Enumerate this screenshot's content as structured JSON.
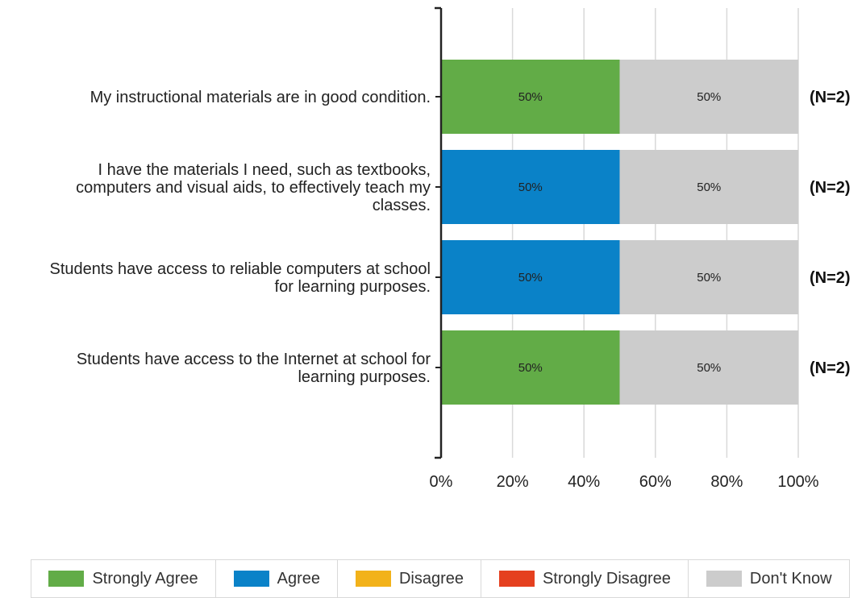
{
  "chart_data": {
    "type": "bar",
    "orientation": "horizontal",
    "stacked": true,
    "categories": [
      "My instructional materials are in good condition.",
      "I have the materials I need, such as textbooks, computers and visual aids, to effectively teach my classes.",
      "Students have access to reliable computers at school for learning purposes.",
      "Students have access to the Internet at school for learning purposes."
    ],
    "category_lines": [
      [
        "My instructional materials are in good condition."
      ],
      [
        "I have the materials I need, such as textbooks,",
        "computers and visual aids, to effectively teach my",
        "classes."
      ],
      [
        "Students have access to reliable computers at school",
        "for learning purposes."
      ],
      [
        "Students have access to the Internet at school for",
        "learning purposes."
      ]
    ],
    "series": [
      {
        "name": "Strongly Agree",
        "color": "#62ac47",
        "values": [
          50,
          0,
          0,
          50
        ]
      },
      {
        "name": "Agree",
        "color": "#0a82c8",
        "values": [
          0,
          50,
          50,
          0
        ]
      },
      {
        "name": "Disagree",
        "color": "#f2b21a",
        "values": [
          0,
          0,
          0,
          0
        ]
      },
      {
        "name": "Strongly Disagree",
        "color": "#e5401f",
        "values": [
          0,
          0,
          0,
          0
        ]
      },
      {
        "name": "Don't Know",
        "color": "#cccccc",
        "values": [
          50,
          50,
          50,
          50
        ]
      }
    ],
    "n_labels": [
      "(N=2)",
      "(N=2)",
      "(N=2)",
      "(N=2)"
    ],
    "x_ticks": [
      "0%",
      "20%",
      "40%",
      "60%",
      "80%",
      "100%"
    ],
    "xlim": [
      0,
      100
    ],
    "grid": true,
    "legend_position": "bottom"
  }
}
